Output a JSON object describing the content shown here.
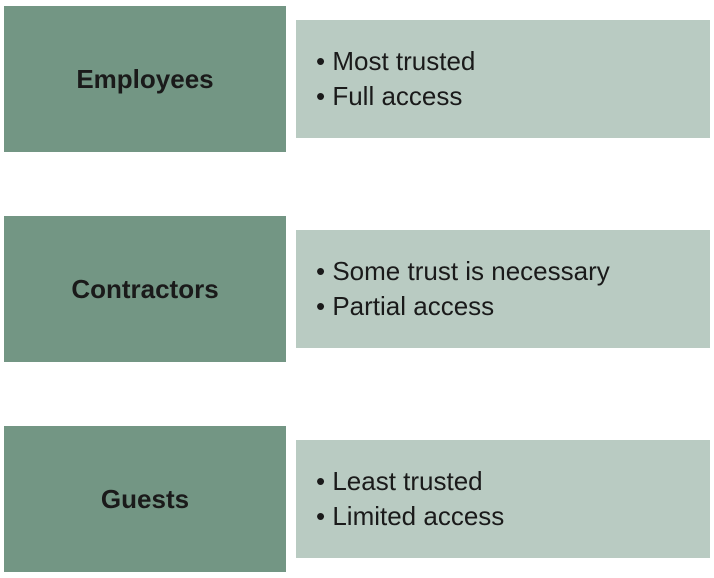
{
  "type": "infographic",
  "background_color": "#ffffff",
  "title_box_color": "#739684",
  "content_box_color": "#b9cbc2",
  "text_color": "#1a1a1a",
  "title_font_weight": "bold",
  "title_fontsize": 26,
  "content_fontsize": 26,
  "bullet_char": "•",
  "rows": [
    {
      "title": "Employees",
      "bullets": [
        "Most trusted",
        "Full access"
      ]
    },
    {
      "title": "Contractors",
      "bullets": [
        "Some trust is necessary",
        "Partial access"
      ]
    },
    {
      "title": "Guests",
      "bullets": [
        "Least trusted",
        "Limited access"
      ]
    }
  ]
}
